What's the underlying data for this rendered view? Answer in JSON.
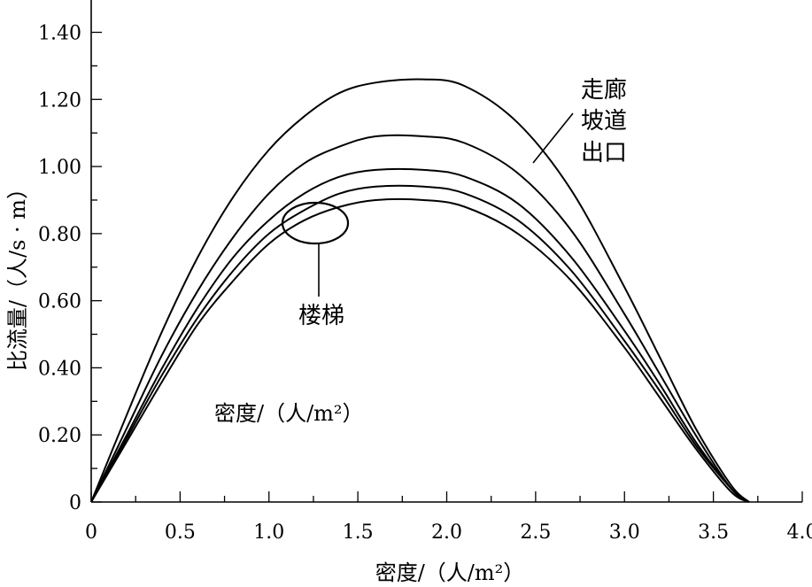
{
  "chart_data": {
    "type": "line",
    "title": "",
    "xlabel": "密度/（人/m²）",
    "ylabel": "比流量/（人/s · m）",
    "inner_label": "密度/（人/m²）",
    "xlim": [
      0,
      4.0
    ],
    "ylim": [
      0,
      1.5
    ],
    "x_ticks": [
      0,
      0.5,
      1.0,
      1.5,
      2.0,
      2.5,
      3.0,
      3.5,
      4.0
    ],
    "x_tick_labels": [
      "0",
      "0.5",
      "1.0",
      "1.5",
      "2.0",
      "2.5",
      "3.0",
      "3.5",
      "4.0"
    ],
    "y_ticks": [
      0,
      0.2,
      0.4,
      0.6,
      0.8,
      1.0,
      1.2,
      1.4
    ],
    "y_tick_labels": [
      "0",
      "0.20",
      "0.40",
      "0.60",
      "0.80",
      "1.00",
      "1.20",
      "1.40"
    ],
    "grid": false,
    "annotations": {
      "upper_group": [
        "走廊",
        "坡道",
        "出口"
      ],
      "stairs": "楼梯"
    },
    "series": [
      {
        "peak_x": 1.87,
        "x": [
          0,
          0.2,
          0.4,
          0.6,
          0.8,
          1.0,
          1.2,
          1.4,
          1.6,
          1.87,
          2.1,
          2.4,
          2.7,
          3.0,
          3.2,
          3.4,
          3.6,
          3.7
        ],
        "y": [
          0,
          0.26,
          0.51,
          0.73,
          0.91,
          1.05,
          1.15,
          1.22,
          1.25,
          1.26,
          1.24,
          1.13,
          0.93,
          0.64,
          0.43,
          0.22,
          0.05,
          0
        ]
      },
      {
        "peak_x": 1.87,
        "x": [
          0,
          0.2,
          0.4,
          0.6,
          0.8,
          1.0,
          1.2,
          1.4,
          1.6,
          1.87,
          2.1,
          2.4,
          2.7,
          3.0,
          3.2,
          3.4,
          3.6,
          3.7
        ],
        "y": [
          0,
          0.22,
          0.44,
          0.63,
          0.79,
          0.92,
          1.01,
          1.06,
          1.09,
          1.09,
          1.07,
          0.98,
          0.81,
          0.56,
          0.38,
          0.2,
          0.04,
          0
        ]
      },
      {
        "peak_x": 1.87,
        "x": [
          0,
          0.2,
          0.4,
          0.6,
          0.8,
          1.0,
          1.2,
          1.4,
          1.6,
          1.87,
          2.1,
          2.4,
          2.7,
          3.0,
          3.2,
          3.4,
          3.6,
          3.7
        ],
        "y": [
          0,
          0.2,
          0.4,
          0.58,
          0.73,
          0.84,
          0.92,
          0.97,
          0.99,
          0.99,
          0.97,
          0.89,
          0.73,
          0.51,
          0.35,
          0.18,
          0.04,
          0
        ]
      },
      {
        "peak_x": 1.87,
        "x": [
          0,
          0.2,
          0.4,
          0.6,
          0.8,
          1.0,
          1.2,
          1.4,
          1.6,
          1.87,
          2.1,
          2.4,
          2.7,
          3.0,
          3.2,
          3.4,
          3.6,
          3.7
        ],
        "y": [
          0,
          0.19,
          0.38,
          0.55,
          0.69,
          0.8,
          0.87,
          0.92,
          0.94,
          0.94,
          0.92,
          0.84,
          0.69,
          0.48,
          0.33,
          0.17,
          0.04,
          0
        ]
      },
      {
        "peak_x": 1.87,
        "x": [
          0,
          0.2,
          0.4,
          0.6,
          0.8,
          1.0,
          1.2,
          1.4,
          1.6,
          1.87,
          2.1,
          2.4,
          2.7,
          3.0,
          3.2,
          3.4,
          3.6,
          3.7
        ],
        "y": [
          0,
          0.18,
          0.36,
          0.53,
          0.66,
          0.77,
          0.84,
          0.88,
          0.9,
          0.9,
          0.88,
          0.8,
          0.66,
          0.46,
          0.31,
          0.16,
          0.03,
          0
        ]
      }
    ]
  }
}
